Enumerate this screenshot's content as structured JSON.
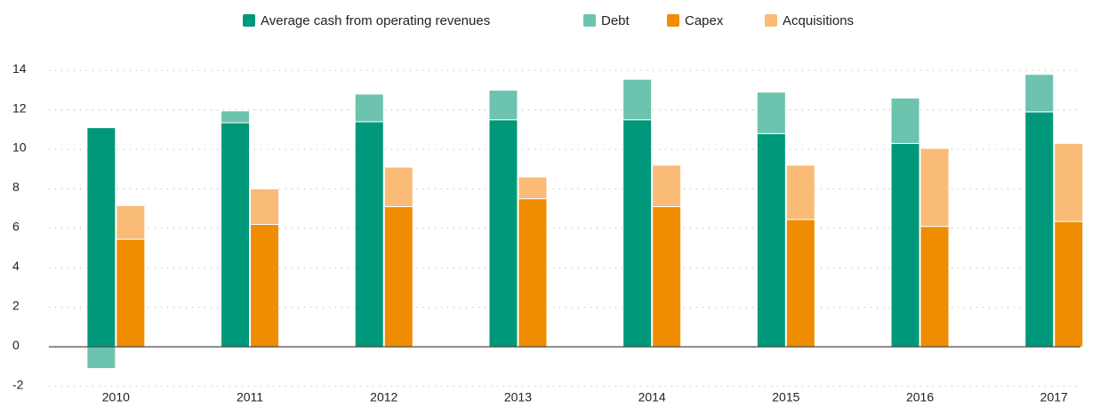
{
  "chart_data": {
    "type": "bar",
    "categories": [
      "2010",
      "2011",
      "2012",
      "2013",
      "2014",
      "2015",
      "2016",
      "2017"
    ],
    "series": [
      {
        "name": "Average cash from operating revenues",
        "color": "#00987a",
        "stack": "a",
        "values": [
          11.1,
          11.35,
          11.4,
          11.5,
          11.5,
          10.8,
          10.3,
          11.9
        ]
      },
      {
        "name": "Debt",
        "color": "#6cc3ae",
        "stack": "a",
        "values": [
          -1.1,
          0.6,
          1.4,
          1.5,
          2.05,
          2.1,
          2.3,
          1.9
        ]
      },
      {
        "name": "Capex",
        "color": "#f08c00",
        "stack": "b",
        "values": [
          5.45,
          6.2,
          7.1,
          7.5,
          7.1,
          6.45,
          6.1,
          6.35
        ]
      },
      {
        "name": "Acquisitions",
        "color": "#f9bb76",
        "stack": "b",
        "values": [
          1.7,
          1.8,
          2.0,
          1.1,
          2.1,
          2.75,
          3.95,
          3.95
        ]
      }
    ],
    "ylim": [
      -2.2,
      15
    ],
    "yticks": [
      -2,
      0,
      2,
      4,
      6,
      8,
      10,
      12,
      14
    ],
    "grid": true,
    "legend": "top"
  }
}
